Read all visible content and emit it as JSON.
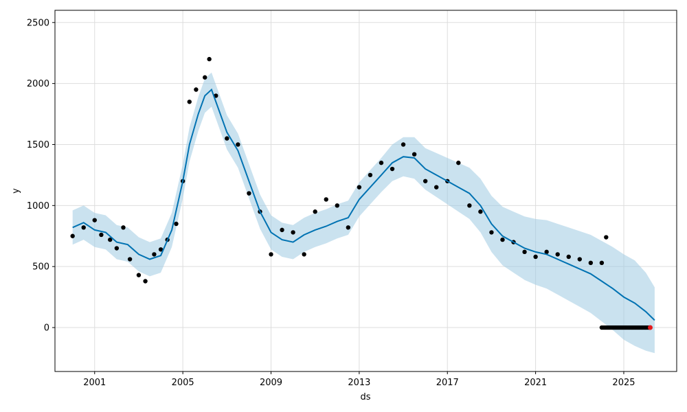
{
  "chart_data": {
    "type": "line",
    "xlabel": "ds",
    "ylabel": "y",
    "xlim": [
      1999.2,
      2027.4
    ],
    "ylim": [
      -360,
      2600
    ],
    "x_ticks": [
      2001,
      2005,
      2009,
      2013,
      2017,
      2021,
      2025
    ],
    "x_tick_labels": [
      "2001",
      "2005",
      "2009",
      "2013",
      "2017",
      "2021",
      "2025"
    ],
    "y_ticks": [
      0,
      500,
      1000,
      1500,
      2000,
      2500
    ],
    "y_tick_labels": [
      "0",
      "500",
      "1000",
      "1500",
      "2000",
      "2500"
    ],
    "grid": true,
    "colors": {
      "forecast_line": "#0072B2",
      "uncertainty_band": "#9ecae1",
      "observed_points": "#000000",
      "highlight_point": "#e31a1c"
    },
    "forecast": {
      "x": [
        2000.0,
        2000.5,
        2001.0,
        2001.5,
        2002.0,
        2002.5,
        2003.0,
        2003.5,
        2004.0,
        2004.5,
        2005.0,
        2005.3,
        2005.7,
        2006.0,
        2006.3,
        2006.6,
        2007.0,
        2007.5,
        2008.0,
        2008.5,
        2009.0,
        2009.5,
        2010.0,
        2010.5,
        2011.0,
        2011.5,
        2012.0,
        2012.5,
        2013.0,
        2013.5,
        2014.0,
        2014.5,
        2015.0,
        2015.5,
        2016.0,
        2016.5,
        2017.0,
        2017.5,
        2018.0,
        2018.5,
        2019.0,
        2019.5,
        2020.0,
        2020.5,
        2021.0,
        2021.5,
        2022.0,
        2022.5,
        2023.0,
        2023.5,
        2024.0,
        2024.5,
        2025.0,
        2025.5,
        2026.0,
        2026.4
      ],
      "yhat": [
        820,
        860,
        800,
        780,
        700,
        680,
        600,
        560,
        590,
        800,
        1200,
        1500,
        1750,
        1900,
        1950,
        1800,
        1600,
        1450,
        1200,
        950,
        780,
        720,
        700,
        760,
        800,
        830,
        870,
        900,
        1050,
        1150,
        1250,
        1350,
        1400,
        1390,
        1300,
        1250,
        1200,
        1150,
        1100,
        1000,
        850,
        750,
        700,
        650,
        620,
        600,
        560,
        520,
        480,
        440,
        380,
        320,
        250,
        200,
        130,
        60
      ],
      "yhat_lower": [
        680,
        720,
        660,
        640,
        560,
        540,
        460,
        420,
        450,
        660,
        1060,
        1360,
        1610,
        1760,
        1810,
        1660,
        1460,
        1310,
        1060,
        810,
        640,
        580,
        560,
        620,
        660,
        690,
        730,
        760,
        910,
        1010,
        1110,
        1200,
        1240,
        1220,
        1130,
        1070,
        1010,
        950,
        890,
        780,
        620,
        510,
        450,
        390,
        350,
        320,
        270,
        220,
        170,
        120,
        50,
        -20,
        -100,
        -150,
        -190,
        -210
      ],
      "yhat_upper": [
        960,
        1000,
        940,
        920,
        840,
        820,
        740,
        700,
        730,
        940,
        1340,
        1640,
        1890,
        2040,
        2090,
        1940,
        1740,
        1590,
        1340,
        1090,
        920,
        860,
        840,
        900,
        940,
        970,
        1010,
        1040,
        1190,
        1290,
        1390,
        1500,
        1560,
        1560,
        1470,
        1430,
        1390,
        1350,
        1310,
        1220,
        1080,
        990,
        950,
        910,
        890,
        880,
        850,
        820,
        790,
        760,
        710,
        660,
        600,
        550,
        450,
        330
      ]
    },
    "observed": {
      "x": [
        2000.0,
        2000.5,
        2001.0,
        2001.3,
        2001.7,
        2002.0,
        2002.3,
        2002.6,
        2003.0,
        2003.3,
        2003.7,
        2004.0,
        2004.3,
        2004.7,
        2005.0,
        2005.3,
        2005.6,
        2006.0,
        2006.2,
        2006.5,
        2007.0,
        2007.5,
        2008.0,
        2008.5,
        2009.0,
        2009.5,
        2010.0,
        2010.5,
        2011.0,
        2011.5,
        2012.0,
        2012.5,
        2013.0,
        2013.5,
        2014.0,
        2014.5,
        2015.0,
        2015.5,
        2016.0,
        2016.5,
        2017.0,
        2017.5,
        2018.0,
        2018.5,
        2019.0,
        2019.5,
        2020.0,
        2020.5,
        2021.0,
        2021.5,
        2022.0,
        2022.5,
        2023.0,
        2023.5,
        2024.0,
        2024.2
      ],
      "y": [
        750,
        820,
        880,
        760,
        720,
        650,
        820,
        560,
        430,
        380,
        600,
        640,
        720,
        850,
        1200,
        1850,
        1950,
        2050,
        2200,
        1900,
        1550,
        1500,
        1100,
        950,
        600,
        800,
        780,
        600,
        950,
        1050,
        1000,
        820,
        1150,
        1250,
        1350,
        1300,
        1500,
        1420,
        1200,
        1150,
        1200,
        1350,
        1000,
        950,
        780,
        720,
        700,
        620,
        580,
        620,
        600,
        580,
        560,
        530,
        530,
        740
      ],
      "forecast_period": {
        "x_range": [
          2024.0,
          2026.2
        ],
        "y": 0
      }
    },
    "highlight": {
      "x": 2026.2,
      "y": 0
    }
  }
}
